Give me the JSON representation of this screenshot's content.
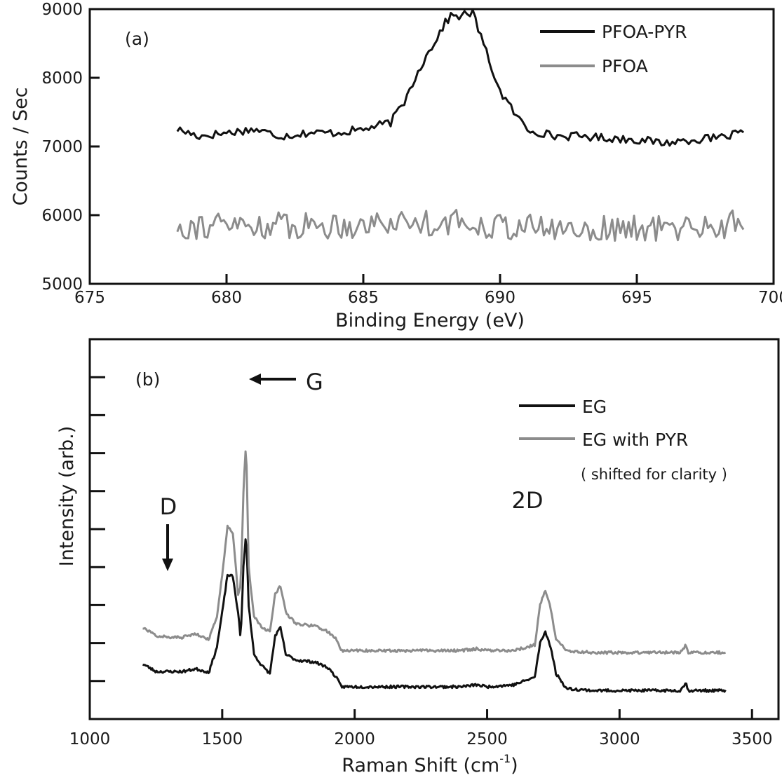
{
  "chart_data": [
    {
      "type": "line",
      "panel_label": "(a)",
      "xlabel": "Binding Energy (eV)",
      "ylabel": "Counts / Sec",
      "xlim": [
        675,
        700
      ],
      "ylim": [
        5000,
        9000
      ],
      "xticks": [
        675,
        680,
        685,
        690,
        695,
        700
      ],
      "yticks": [
        5000,
        6000,
        7000,
        8000,
        9000
      ],
      "grid": false,
      "legend_position": "top-right",
      "colors": {
        "PFOA-PYR": "#111111",
        "PFOA": "#8c8c8c"
      },
      "series": [
        {
          "name": "PFOA-PYR",
          "x": [
            678.2,
            679,
            680,
            681,
            682,
            683,
            684,
            685,
            686,
            686.5,
            687,
            687.5,
            688,
            688.2,
            688.5,
            689,
            689.3,
            689.6,
            690,
            690.5,
            691,
            692,
            693,
            694,
            695,
            696,
            697,
            698,
            698.9
          ],
          "y": [
            7250,
            7150,
            7200,
            7250,
            7150,
            7200,
            7200,
            7250,
            7350,
            7650,
            8100,
            8450,
            8800,
            8900,
            8900,
            8950,
            8600,
            8250,
            7800,
            7500,
            7250,
            7150,
            7150,
            7120,
            7100,
            7050,
            7100,
            7120,
            7200
          ],
          "noise_amplitude": 60
        },
        {
          "name": "PFOA",
          "x": [
            678.2,
            680,
            682,
            684,
            686,
            688,
            690,
            692,
            694,
            696,
            698,
            698.9
          ],
          "y": [
            5850,
            5850,
            5850,
            5850,
            5900,
            5900,
            5850,
            5800,
            5800,
            5800,
            5850,
            5900
          ],
          "noise_amplitude": 200
        }
      ]
    },
    {
      "type": "line",
      "panel_label": "(b)",
      "xlabel": "Raman Shift (cm",
      "xlabel_sup": "-1",
      "xlabel_close": ")",
      "ylabel": "Intensity (arb.)",
      "xlim": [
        1000,
        3600
      ],
      "ylim": [
        0,
        100
      ],
      "xticks": [
        1000,
        1500,
        2000,
        2500,
        3000,
        3500
      ],
      "yticks_unlabeled": [
        10,
        20,
        30,
        40,
        50,
        60,
        70,
        80,
        90
      ],
      "grid": false,
      "legend_position": "top-right",
      "legend_note": "( shifted for clarity )",
      "colors": {
        "EG": "#111111",
        "EG with PYR": "#8c8c8c"
      },
      "annotations": {
        "D": {
          "text": "D",
          "x": 1300
        },
        "G": {
          "text": "G",
          "x": 1590
        },
        "2D": {
          "text": "2D",
          "x": 2720
        }
      },
      "series": [
        {
          "name": "EG",
          "x": [
            1200,
            1250,
            1300,
            1350,
            1400,
            1450,
            1480,
            1500,
            1520,
            1540,
            1560,
            1570,
            1580,
            1590,
            1600,
            1620,
            1650,
            1680,
            1700,
            1720,
            1740,
            1780,
            1850,
            1900,
            1930,
            1950,
            2000,
            2200,
            2400,
            2460,
            2500,
            2600,
            2680,
            2700,
            2720,
            2740,
            2760,
            2800,
            2900,
            3100,
            3230,
            3250,
            3260,
            3300,
            3400
          ],
          "y": [
            14.5,
            12.5,
            12.5,
            12.5,
            13.2,
            12.3,
            19,
            28,
            38,
            37.5,
            28,
            21,
            40,
            49,
            30,
            17,
            14,
            12,
            22,
            24,
            17,
            15.5,
            15,
            13.5,
            11,
            8.5,
            8.5,
            8.5,
            8.5,
            9,
            8.5,
            9,
            11,
            20,
            23,
            19,
            12,
            8,
            7.5,
            7.5,
            7.5,
            9.5,
            7.5,
            7.5,
            7.5
          ],
          "noise_amplitude": 0.35
        },
        {
          "name": "EG with PYR",
          "x": [
            1200,
            1250,
            1300,
            1350,
            1400,
            1450,
            1480,
            1500,
            1520,
            1540,
            1560,
            1570,
            1580,
            1590,
            1600,
            1620,
            1650,
            1680,
            1700,
            1720,
            1740,
            1780,
            1850,
            1900,
            1930,
            1950,
            2000,
            2200,
            2400,
            2460,
            2500,
            2600,
            2680,
            2700,
            2720,
            2740,
            2760,
            2800,
            2900,
            3100,
            3230,
            3250,
            3260,
            3300,
            3400
          ],
          "y": [
            24,
            22,
            21.5,
            21.5,
            22.5,
            21,
            27,
            38,
            51,
            49,
            33,
            35,
            60,
            73,
            40,
            27,
            24,
            23,
            33,
            35,
            28,
            25,
            24.5,
            23,
            21,
            18,
            18,
            18,
            18,
            18.5,
            18,
            18,
            19.5,
            30,
            34,
            29,
            21,
            18,
            17.5,
            17.5,
            17.5,
            19.5,
            17.5,
            17.5,
            17.5
          ],
          "noise_amplitude": 0.35
        }
      ]
    }
  ]
}
